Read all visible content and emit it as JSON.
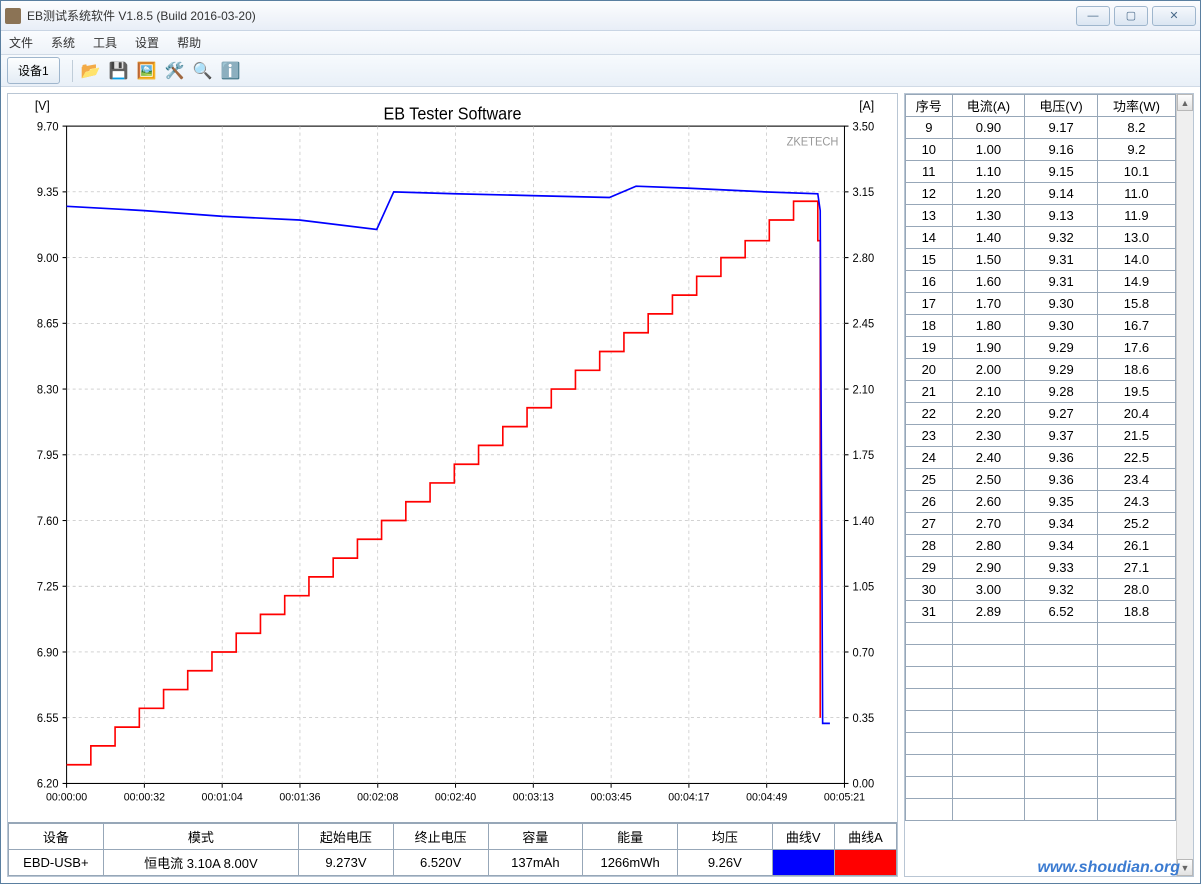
{
  "window": {
    "title": "EB测试系统软件 V1.8.5 (Build 2016-03-20)"
  },
  "menu": {
    "file": "文件",
    "system": "系统",
    "tool": "工具",
    "setting": "设置",
    "help": "帮助"
  },
  "tab": {
    "device": "设备1"
  },
  "chart": {
    "title": "EB Tester Software",
    "brand": "ZKETECH",
    "left_axis_label": "[V]",
    "right_axis_label": "[A]",
    "y_left_ticks": [
      "9.70",
      "9.35",
      "9.00",
      "8.65",
      "8.30",
      "7.95",
      "7.60",
      "7.25",
      "6.90",
      "6.55",
      "6.20"
    ],
    "y_right_ticks": [
      "3.50",
      "3.15",
      "2.80",
      "2.45",
      "2.10",
      "1.75",
      "1.40",
      "1.05",
      "0.70",
      "0.35",
      "0.00"
    ],
    "x_ticks": [
      "00:00:00",
      "00:00:32",
      "00:01:04",
      "00:01:36",
      "00:02:08",
      "00:02:40",
      "00:03:13",
      "00:03:45",
      "00:04:17",
      "00:04:49",
      "00:05:21"
    ],
    "voltage_color": "#0000ff",
    "current_color": "#ff0000",
    "grid_color": "#b8b8b8",
    "voltage_series": [
      [
        0,
        9.273
      ],
      [
        32,
        9.25
      ],
      [
        64,
        9.22
      ],
      [
        96,
        9.2
      ],
      [
        128,
        9.15
      ],
      [
        135,
        9.35
      ],
      [
        160,
        9.34
      ],
      [
        192,
        9.33
      ],
      [
        224,
        9.32
      ],
      [
        235,
        9.38
      ],
      [
        256,
        9.37
      ],
      [
        288,
        9.35
      ],
      [
        310,
        9.34
      ],
      [
        311,
        9.25
      ],
      [
        312,
        6.52
      ],
      [
        315,
        6.52
      ]
    ],
    "current_series": [
      [
        0,
        0.1
      ],
      [
        10,
        0.1
      ],
      [
        10,
        0.2
      ],
      [
        20,
        0.2
      ],
      [
        20,
        0.3
      ],
      [
        30,
        0.3
      ],
      [
        30,
        0.4
      ],
      [
        40,
        0.4
      ],
      [
        40,
        0.5
      ],
      [
        50,
        0.5
      ],
      [
        50,
        0.6
      ],
      [
        60,
        0.6
      ],
      [
        60,
        0.7
      ],
      [
        70,
        0.7
      ],
      [
        70,
        0.8
      ],
      [
        80,
        0.8
      ],
      [
        80,
        0.9
      ],
      [
        90,
        0.9
      ],
      [
        90,
        1.0
      ],
      [
        100,
        1.0
      ],
      [
        100,
        1.1
      ],
      [
        110,
        1.1
      ],
      [
        110,
        1.2
      ],
      [
        120,
        1.2
      ],
      [
        120,
        1.3
      ],
      [
        130,
        1.3
      ],
      [
        130,
        1.4
      ],
      [
        140,
        1.4
      ],
      [
        140,
        1.5
      ],
      [
        150,
        1.5
      ],
      [
        150,
        1.6
      ],
      [
        160,
        1.6
      ],
      [
        160,
        1.7
      ],
      [
        170,
        1.7
      ],
      [
        170,
        1.8
      ],
      [
        180,
        1.8
      ],
      [
        180,
        1.9
      ],
      [
        190,
        1.9
      ],
      [
        190,
        2.0
      ],
      [
        200,
        2.0
      ],
      [
        200,
        2.1
      ],
      [
        210,
        2.1
      ],
      [
        210,
        2.2
      ],
      [
        220,
        2.2
      ],
      [
        220,
        2.3
      ],
      [
        230,
        2.3
      ],
      [
        230,
        2.4
      ],
      [
        240,
        2.4
      ],
      [
        240,
        2.5
      ],
      [
        250,
        2.5
      ],
      [
        250,
        2.6
      ],
      [
        260,
        2.6
      ],
      [
        260,
        2.7
      ],
      [
        270,
        2.7
      ],
      [
        270,
        2.8
      ],
      [
        280,
        2.8
      ],
      [
        280,
        2.89
      ],
      [
        290,
        2.89
      ],
      [
        290,
        3.0
      ],
      [
        300,
        3.0
      ],
      [
        300,
        3.1
      ],
      [
        310,
        3.1
      ],
      [
        310,
        2.89
      ],
      [
        311,
        2.89
      ],
      [
        311,
        0.35
      ]
    ],
    "x_domain": [
      0,
      321
    ],
    "y_left_domain": [
      6.2,
      9.7
    ],
    "y_right_domain": [
      0.0,
      3.5
    ]
  },
  "summary": {
    "headers": {
      "device": "设备",
      "mode": "模式",
      "startV": "起始电压",
      "endV": "终止电压",
      "capacity": "容量",
      "energy": "能量",
      "avgV": "均压",
      "curveV": "曲线V",
      "curveA": "曲线A"
    },
    "values": {
      "device": "EBD-USB+",
      "mode": "恒电流  3.10A  8.00V",
      "startV": "9.273V",
      "endV": "6.520V",
      "capacity": "137mAh",
      "energy": "1266mWh",
      "avgV": "9.26V"
    }
  },
  "table": {
    "headers": {
      "seq": "序号",
      "current": "电流(A)",
      "voltage": "电压(V)",
      "power": "功率(W)"
    },
    "rows": [
      [
        "9",
        "0.90",
        "9.17",
        "8.2"
      ],
      [
        "10",
        "1.00",
        "9.16",
        "9.2"
      ],
      [
        "11",
        "1.10",
        "9.15",
        "10.1"
      ],
      [
        "12",
        "1.20",
        "9.14",
        "11.0"
      ],
      [
        "13",
        "1.30",
        "9.13",
        "11.9"
      ],
      [
        "14",
        "1.40",
        "9.32",
        "13.0"
      ],
      [
        "15",
        "1.50",
        "9.31",
        "14.0"
      ],
      [
        "16",
        "1.60",
        "9.31",
        "14.9"
      ],
      [
        "17",
        "1.70",
        "9.30",
        "15.8"
      ],
      [
        "18",
        "1.80",
        "9.30",
        "16.7"
      ],
      [
        "19",
        "1.90",
        "9.29",
        "17.6"
      ],
      [
        "20",
        "2.00",
        "9.29",
        "18.6"
      ],
      [
        "21",
        "2.10",
        "9.28",
        "19.5"
      ],
      [
        "22",
        "2.20",
        "9.27",
        "20.4"
      ],
      [
        "23",
        "2.30",
        "9.37",
        "21.5"
      ],
      [
        "24",
        "2.40",
        "9.36",
        "22.5"
      ],
      [
        "25",
        "2.50",
        "9.36",
        "23.4"
      ],
      [
        "26",
        "2.60",
        "9.35",
        "24.3"
      ],
      [
        "27",
        "2.70",
        "9.34",
        "25.2"
      ],
      [
        "28",
        "2.80",
        "9.34",
        "26.1"
      ],
      [
        "29",
        "2.90",
        "9.33",
        "27.1"
      ],
      [
        "30",
        "3.00",
        "9.32",
        "28.0"
      ],
      [
        "31",
        "2.89",
        "6.52",
        "18.8"
      ]
    ],
    "empty_rows": 9
  },
  "watermark": "www.shoudian.org"
}
